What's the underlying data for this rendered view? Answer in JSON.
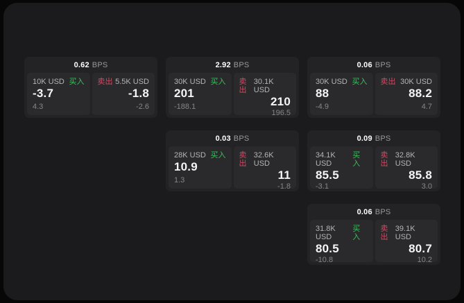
{
  "labels": {
    "bps": "BPS",
    "buy": "买入",
    "sell": "卖出"
  },
  "colors": {
    "buy_green": "#3ebd5f",
    "sell_red": "#ce4a63",
    "page_bg": "#1b1b1d",
    "card_bg": "#232325",
    "panel_bg": "#2a2a2c"
  },
  "cards": [
    {
      "bps": "0.62",
      "buy": {
        "amount": "10K USD",
        "value": "-3.7",
        "sub": "4.3"
      },
      "sell": {
        "amount": "5.5K USD",
        "value": "-1.8",
        "sub": "-2.6"
      }
    },
    {
      "bps": "2.92",
      "buy": {
        "amount": "30K USD",
        "value": "201",
        "sub": "-188.1"
      },
      "sell": {
        "amount": "30.1K USD",
        "value": "210",
        "sub": "196.5"
      }
    },
    {
      "bps": "0.06",
      "buy": {
        "amount": "30K USD",
        "value": "88",
        "sub": "-4.9"
      },
      "sell": {
        "amount": "30K USD",
        "value": "88.2",
        "sub": "4.7"
      }
    },
    {
      "bps": "0.03",
      "buy": {
        "amount": "28K USD",
        "value": "10.9",
        "sub": "1.3"
      },
      "sell": {
        "amount": "32.6K USD",
        "value": "11",
        "sub": "-1.8"
      }
    },
    {
      "bps": "0.09",
      "buy": {
        "amount": "34.1K USD",
        "value": "85.5",
        "sub": "-3.1"
      },
      "sell": {
        "amount": "32.8K USD",
        "value": "85.8",
        "sub": "3.0"
      }
    },
    {
      "bps": "0.06",
      "buy": {
        "amount": "31.8K USD",
        "value": "80.5",
        "sub": "-10.8"
      },
      "sell": {
        "amount": "39.1K USD",
        "value": "80.7",
        "sub": "10.2"
      }
    }
  ]
}
